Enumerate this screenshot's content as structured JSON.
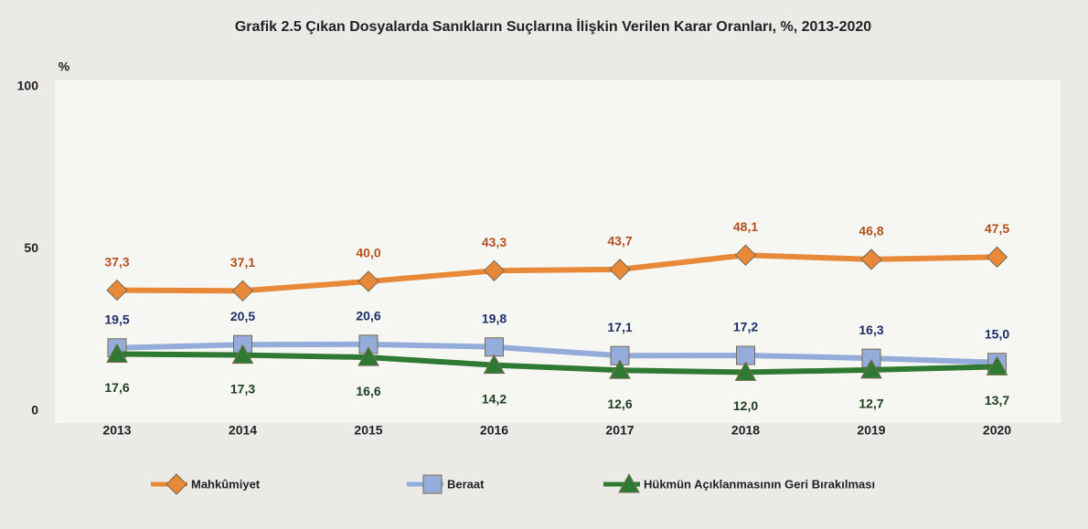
{
  "chart_data": {
    "type": "line",
    "title": "Grafik 2.5 Çıkan Dosyalarda Sanıkların Suçlarına İlişkin Verilen Karar  Oranları, %, 2013-2020",
    "y_label": "%",
    "categories": [
      "2013",
      "2014",
      "2015",
      "2016",
      "2017",
      "2018",
      "2019",
      "2020"
    ],
    "series": [
      {
        "name": "Mahkûmiyet",
        "color": "#e8893a",
        "marker": "diamond",
        "label_position": "above",
        "values": [
          37.3,
          37.1,
          40.0,
          43.3,
          43.7,
          48.1,
          46.8,
          47.5
        ],
        "value_labels": [
          "37,3",
          "37,1",
          "40,0",
          "43,3",
          "43,7",
          "48,1",
          "46,8",
          "47,5"
        ]
      },
      {
        "name": "Beraat",
        "color": "#93acd9",
        "marker": "square",
        "label_position": "above",
        "values": [
          19.5,
          20.5,
          20.6,
          19.8,
          17.1,
          17.2,
          16.3,
          15.0
        ],
        "value_labels": [
          "19,5",
          "20,5",
          "20,6",
          "19,8",
          "17,1",
          "17,2",
          "16,3",
          "15,0"
        ]
      },
      {
        "name": "Hükmün Açıklanmasının Geri Bırakılması",
        "color": "#2f7a33",
        "marker": "triangle",
        "label_position": "below",
        "values": [
          17.6,
          17.3,
          16.6,
          14.2,
          12.6,
          12.0,
          12.7,
          13.7
        ],
        "value_labels": [
          "17,6",
          "17,3",
          "16,6",
          "14,2",
          "12,6",
          "12,0",
          "12,7",
          "13,7"
        ]
      }
    ],
    "ylim": [
      0,
      100
    ],
    "yticks": [
      0,
      50,
      100
    ],
    "grid": false
  }
}
